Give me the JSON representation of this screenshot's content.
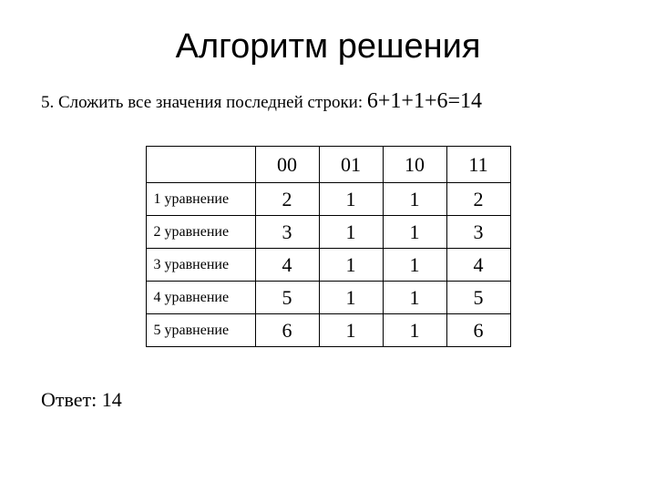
{
  "title": "Алгоритм решения",
  "instruction_prefix": "5. Сложить все значения последней строки: ",
  "instruction_math": "6+1+1+6=14",
  "table": {
    "header_first_empty": "",
    "col_headers": [
      "00",
      "01",
      "10",
      "11"
    ],
    "row_labels": [
      "1 уравнение",
      "2 уравнение",
      "3 уравнение",
      "4 уравнение",
      "5 уравнение"
    ],
    "rows": [
      [
        2,
        1,
        1,
        2
      ],
      [
        3,
        1,
        1,
        3
      ],
      [
        4,
        1,
        1,
        4
      ],
      [
        5,
        1,
        1,
        5
      ],
      [
        6,
        1,
        1,
        6
      ]
    ],
    "border_color": "#000000",
    "cell_font_size": 22,
    "label_font_size": 16,
    "label_col_width": 120,
    "val_col_width": 70
  },
  "answer_label": "Ответ: ",
  "answer_value": "14",
  "background_color": "#ffffff",
  "text_color": "#000000",
  "title_fontsize": 38,
  "instruction_fontsize": 19,
  "instruction_math_fontsize": 24,
  "answer_fontsize": 22
}
